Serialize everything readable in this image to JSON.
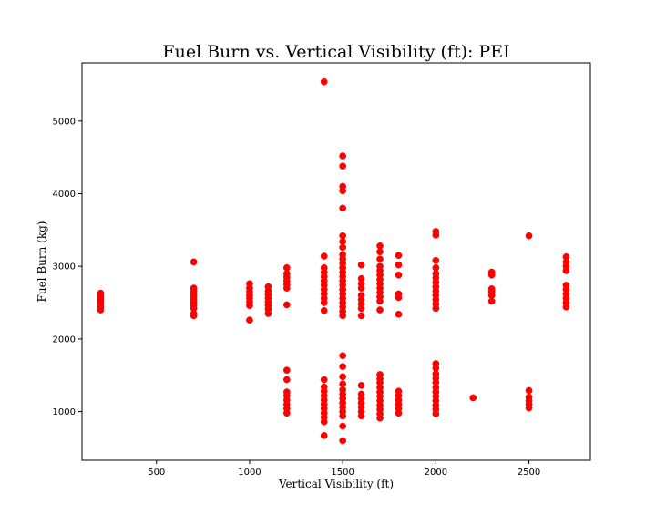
{
  "chart_data": {
    "type": "scatter",
    "title": "Fuel Burn vs. Vertical Visibility (ft): PEI",
    "xlabel": "Vertical Visibility (ft)",
    "ylabel": "Fuel Burn (kg)",
    "xlim": [
      100,
      2830
    ],
    "ylim": [
      330,
      5800
    ],
    "x_ticks": [
      500,
      1000,
      1500,
      2000,
      2500
    ],
    "y_ticks": [
      1000,
      2000,
      3000,
      4000,
      5000
    ],
    "grid": false,
    "marker_color": "#ff0000",
    "series": [
      {
        "points": [
          [
            200,
            2400
          ],
          [
            200,
            2440
          ],
          [
            200,
            2480
          ],
          [
            200,
            2510
          ],
          [
            200,
            2540
          ],
          [
            200,
            2570
          ],
          [
            200,
            2600
          ],
          [
            200,
            2630
          ],
          [
            700,
            2320
          ],
          [
            700,
            2350
          ],
          [
            700,
            2420
          ],
          [
            700,
            2460
          ],
          [
            700,
            2500
          ],
          [
            700,
            2540
          ],
          [
            700,
            2580
          ],
          [
            700,
            2620
          ],
          [
            700,
            2660
          ],
          [
            700,
            2700
          ],
          [
            700,
            3060
          ],
          [
            1000,
            2260
          ],
          [
            1000,
            2460
          ],
          [
            1000,
            2510
          ],
          [
            1000,
            2560
          ],
          [
            1000,
            2600
          ],
          [
            1000,
            2650
          ],
          [
            1000,
            2700
          ],
          [
            1000,
            2760
          ],
          [
            1100,
            2350
          ],
          [
            1100,
            2410
          ],
          [
            1100,
            2460
          ],
          [
            1100,
            2510
          ],
          [
            1100,
            2560
          ],
          [
            1100,
            2610
          ],
          [
            1100,
            2660
          ],
          [
            1100,
            2720
          ],
          [
            1200,
            980
          ],
          [
            1200,
            1040
          ],
          [
            1200,
            1100
          ],
          [
            1200,
            1160
          ],
          [
            1200,
            1220
          ],
          [
            1200,
            1270
          ],
          [
            1200,
            1440
          ],
          [
            1200,
            1570
          ],
          [
            1200,
            2470
          ],
          [
            1200,
            2700
          ],
          [
            1200,
            2750
          ],
          [
            1200,
            2800
          ],
          [
            1200,
            2850
          ],
          [
            1200,
            2900
          ],
          [
            1200,
            2980
          ],
          [
            1400,
            670
          ],
          [
            1400,
            860
          ],
          [
            1400,
            920
          ],
          [
            1400,
            980
          ],
          [
            1400,
            1040
          ],
          [
            1400,
            1100
          ],
          [
            1400,
            1160
          ],
          [
            1400,
            1220
          ],
          [
            1400,
            1280
          ],
          [
            1400,
            1340
          ],
          [
            1400,
            1440
          ],
          [
            1400,
            2390
          ],
          [
            1400,
            2500
          ],
          [
            1400,
            2560
          ],
          [
            1400,
            2620
          ],
          [
            1400,
            2680
          ],
          [
            1400,
            2740
          ],
          [
            1400,
            2800
          ],
          [
            1400,
            2860
          ],
          [
            1400,
            2920
          ],
          [
            1400,
            2980
          ],
          [
            1400,
            3140
          ],
          [
            1400,
            5540
          ],
          [
            1500,
            600
          ],
          [
            1500,
            800
          ],
          [
            1500,
            940
          ],
          [
            1500,
            1000
          ],
          [
            1500,
            1060
          ],
          [
            1500,
            1120
          ],
          [
            1500,
            1180
          ],
          [
            1500,
            1240
          ],
          [
            1500,
            1300
          ],
          [
            1500,
            1380
          ],
          [
            1500,
            1480
          ],
          [
            1500,
            1620
          ],
          [
            1500,
            1770
          ],
          [
            1500,
            2320
          ],
          [
            1500,
            2380
          ],
          [
            1500,
            2440
          ],
          [
            1500,
            2500
          ],
          [
            1500,
            2560
          ],
          [
            1500,
            2620
          ],
          [
            1500,
            2680
          ],
          [
            1500,
            2740
          ],
          [
            1500,
            2800
          ],
          [
            1500,
            2860
          ],
          [
            1500,
            2920
          ],
          [
            1500,
            2980
          ],
          [
            1500,
            3040
          ],
          [
            1500,
            3100
          ],
          [
            1500,
            3160
          ],
          [
            1500,
            3260
          ],
          [
            1500,
            3340
          ],
          [
            1500,
            3420
          ],
          [
            1500,
            3800
          ],
          [
            1500,
            4040
          ],
          [
            1500,
            4100
          ],
          [
            1500,
            4380
          ],
          [
            1500,
            4520
          ],
          [
            1600,
            940
          ],
          [
            1600,
            1000
          ],
          [
            1600,
            1060
          ],
          [
            1600,
            1120
          ],
          [
            1600,
            1180
          ],
          [
            1600,
            1240
          ],
          [
            1600,
            1360
          ],
          [
            1600,
            2320
          ],
          [
            1600,
            2420
          ],
          [
            1600,
            2480
          ],
          [
            1600,
            2540
          ],
          [
            1600,
            2600
          ],
          [
            1600,
            2700
          ],
          [
            1600,
            2760
          ],
          [
            1600,
            2830
          ],
          [
            1600,
            3020
          ],
          [
            1700,
            910
          ],
          [
            1700,
            970
          ],
          [
            1700,
            1030
          ],
          [
            1700,
            1090
          ],
          [
            1700,
            1150
          ],
          [
            1700,
            1210
          ],
          [
            1700,
            1270
          ],
          [
            1700,
            1330
          ],
          [
            1700,
            1400
          ],
          [
            1700,
            1450
          ],
          [
            1700,
            1510
          ],
          [
            1700,
            2400
          ],
          [
            1700,
            2520
          ],
          [
            1700,
            2580
          ],
          [
            1700,
            2640
          ],
          [
            1700,
            2700
          ],
          [
            1700,
            2760
          ],
          [
            1700,
            2820
          ],
          [
            1700,
            2880
          ],
          [
            1700,
            2940
          ],
          [
            1700,
            3000
          ],
          [
            1700,
            3100
          ],
          [
            1700,
            3200
          ],
          [
            1700,
            3280
          ],
          [
            1800,
            980
          ],
          [
            1800,
            1040
          ],
          [
            1800,
            1100
          ],
          [
            1800,
            1160
          ],
          [
            1800,
            1220
          ],
          [
            1800,
            1280
          ],
          [
            1800,
            2340
          ],
          [
            1800,
            2570
          ],
          [
            1800,
            2620
          ],
          [
            1800,
            2880
          ],
          [
            1800,
            3020
          ],
          [
            1800,
            3150
          ],
          [
            2000,
            970
          ],
          [
            2000,
            1030
          ],
          [
            2000,
            1090
          ],
          [
            2000,
            1150
          ],
          [
            2000,
            1210
          ],
          [
            2000,
            1270
          ],
          [
            2000,
            1330
          ],
          [
            2000,
            1400
          ],
          [
            2000,
            1460
          ],
          [
            2000,
            1520
          ],
          [
            2000,
            1600
          ],
          [
            2000,
            1660
          ],
          [
            2000,
            2420
          ],
          [
            2000,
            2480
          ],
          [
            2000,
            2540
          ],
          [
            2000,
            2600
          ],
          [
            2000,
            2660
          ],
          [
            2000,
            2720
          ],
          [
            2000,
            2780
          ],
          [
            2000,
            2840
          ],
          [
            2000,
            2900
          ],
          [
            2000,
            2980
          ],
          [
            2000,
            3080
          ],
          [
            2000,
            3430
          ],
          [
            2000,
            3480
          ],
          [
            2200,
            1190
          ],
          [
            2300,
            2520
          ],
          [
            2300,
            2600
          ],
          [
            2300,
            2650
          ],
          [
            2300,
            2690
          ],
          [
            2300,
            2880
          ],
          [
            2300,
            2920
          ],
          [
            2500,
            1050
          ],
          [
            2500,
            1100
          ],
          [
            2500,
            1150
          ],
          [
            2500,
            1200
          ],
          [
            2500,
            1290
          ],
          [
            2500,
            3420
          ],
          [
            2700,
            2440
          ],
          [
            2700,
            2500
          ],
          [
            2700,
            2560
          ],
          [
            2700,
            2620
          ],
          [
            2700,
            2680
          ],
          [
            2700,
            2740
          ],
          [
            2700,
            2940
          ],
          [
            2700,
            3000
          ],
          [
            2700,
            3060
          ],
          [
            2700,
            3130
          ]
        ]
      }
    ]
  }
}
